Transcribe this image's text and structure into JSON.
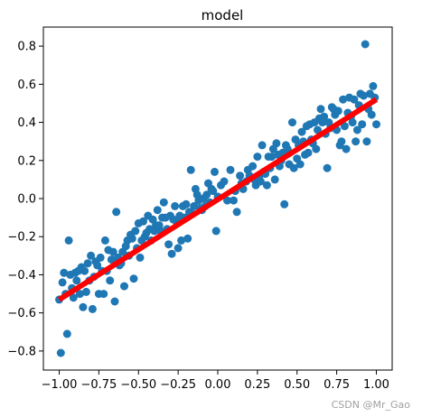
{
  "chart_data": {
    "type": "scatter",
    "title": "model",
    "xlabel": "",
    "ylabel": "",
    "xlim": [
      -1.1,
      1.1
    ],
    "ylim": [
      -0.9,
      0.9
    ],
    "x_ticks": [
      -1.0,
      -0.75,
      -0.5,
      -0.25,
      0.0,
      0.25,
      0.5,
      0.75,
      1.0
    ],
    "x_tick_labels": [
      "−1.00",
      "−0.75",
      "−0.50",
      "−0.25",
      "0.00",
      "0.25",
      "0.50",
      "0.75",
      "1.00"
    ],
    "y_ticks": [
      -0.8,
      -0.6,
      -0.4,
      -0.2,
      0.0,
      0.2,
      0.4,
      0.6,
      0.8
    ],
    "y_tick_labels": [
      "−0.8",
      "−0.6",
      "−0.4",
      "−0.2",
      "0.0",
      "0.2",
      "0.4",
      "0.6",
      "0.8"
    ],
    "grid": false,
    "series": [
      {
        "type": "scatter",
        "color": "#1f77b4",
        "points": [
          [
            -1.0,
            -0.53
          ],
          [
            -0.99,
            -0.81
          ],
          [
            -0.98,
            -0.44
          ],
          [
            -0.97,
            -0.39
          ],
          [
            -0.96,
            -0.5
          ],
          [
            -0.95,
            -0.71
          ],
          [
            -0.94,
            -0.22
          ],
          [
            -0.93,
            -0.4
          ],
          [
            -0.92,
            -0.47
          ],
          [
            -0.91,
            -0.52
          ],
          [
            -0.9,
            -0.39
          ],
          [
            -0.89,
            -0.43
          ],
          [
            -0.88,
            -0.38
          ],
          [
            -0.87,
            -0.5
          ],
          [
            -0.86,
            -0.36
          ],
          [
            -0.85,
            -0.57
          ],
          [
            -0.84,
            -0.38
          ],
          [
            -0.83,
            -0.49
          ],
          [
            -0.82,
            -0.34
          ],
          [
            -0.81,
            -0.43
          ],
          [
            -0.8,
            -0.3
          ],
          [
            -0.79,
            -0.58
          ],
          [
            -0.78,
            -0.41
          ],
          [
            -0.77,
            -0.33
          ],
          [
            -0.76,
            -0.35
          ],
          [
            -0.75,
            -0.5
          ],
          [
            -0.74,
            -0.31
          ],
          [
            -0.73,
            -0.38
          ],
          [
            -0.72,
            -0.5
          ],
          [
            -0.71,
            -0.22
          ],
          [
            -0.7,
            -0.38
          ],
          [
            -0.69,
            -0.27
          ],
          [
            -0.68,
            -0.43
          ],
          [
            -0.67,
            -0.32
          ],
          [
            -0.66,
            -0.28
          ],
          [
            -0.65,
            -0.54
          ],
          [
            -0.64,
            -0.07
          ],
          [
            -0.63,
            -0.31
          ],
          [
            -0.62,
            -0.35
          ],
          [
            -0.61,
            -0.34
          ],
          [
            -0.6,
            -0.28
          ],
          [
            -0.59,
            -0.46
          ],
          [
            -0.58,
            -0.25
          ],
          [
            -0.57,
            -0.22
          ],
          [
            -0.56,
            -0.3
          ],
          [
            -0.55,
            -0.19
          ],
          [
            -0.54,
            -0.21
          ],
          [
            -0.53,
            -0.42
          ],
          [
            -0.52,
            -0.17
          ],
          [
            -0.51,
            -0.26
          ],
          [
            -0.5,
            -0.13
          ],
          [
            -0.49,
            -0.31
          ],
          [
            -0.48,
            -0.22
          ],
          [
            -0.47,
            -0.12
          ],
          [
            -0.46,
            -0.2
          ],
          [
            -0.45,
            -0.18
          ],
          [
            -0.44,
            -0.09
          ],
          [
            -0.43,
            -0.16
          ],
          [
            -0.42,
            -0.22
          ],
          [
            -0.41,
            -0.11
          ],
          [
            -0.4,
            -0.17
          ],
          [
            -0.39,
            -0.14
          ],
          [
            -0.38,
            -0.06
          ],
          [
            -0.37,
            -0.14
          ],
          [
            -0.36,
            -0.17
          ],
          [
            -0.35,
            -0.1
          ],
          [
            -0.34,
            -0.02
          ],
          [
            -0.33,
            -0.1
          ],
          [
            -0.32,
            -0.16
          ],
          [
            -0.31,
            -0.24
          ],
          [
            -0.3,
            -0.09
          ],
          [
            -0.29,
            -0.29
          ],
          [
            -0.28,
            -0.11
          ],
          [
            -0.27,
            -0.04
          ],
          [
            -0.26,
            -0.12
          ],
          [
            -0.25,
            -0.26
          ],
          [
            -0.24,
            -0.09
          ],
          [
            -0.23,
            -0.22
          ],
          [
            -0.22,
            -0.04
          ],
          [
            -0.21,
            -0.1
          ],
          [
            -0.2,
            -0.03
          ],
          [
            -0.19,
            -0.21
          ],
          [
            -0.18,
            -0.07
          ],
          [
            -0.17,
            0.15
          ],
          [
            -0.16,
            -0.08
          ],
          [
            -0.15,
            -0.04
          ],
          [
            -0.14,
            0.05
          ],
          [
            -0.13,
            0.02
          ],
          [
            -0.12,
            -0.01
          ],
          [
            -0.11,
            -0.05
          ],
          [
            -0.1,
            -0.06
          ],
          [
            -0.09,
            0.0
          ],
          [
            -0.08,
            -0.04
          ],
          [
            -0.07,
            0.02
          ],
          [
            -0.06,
            0.08
          ],
          [
            -0.05,
            -0.02
          ],
          [
            -0.04,
            0.05
          ],
          [
            -0.03,
            0.04
          ],
          [
            -0.02,
            0.14
          ],
          [
            -0.01,
            -0.17
          ],
          [
            0.0,
            0.01
          ],
          [
            0.02,
            0.07
          ],
          [
            0.04,
            0.09
          ],
          [
            0.06,
            -0.01
          ],
          [
            0.08,
            0.15
          ],
          [
            0.1,
            -0.01
          ],
          [
            0.11,
            0.04
          ],
          [
            0.12,
            -0.07
          ],
          [
            0.14,
            0.12
          ],
          [
            0.15,
            0.08
          ],
          [
            0.16,
            0.05
          ],
          [
            0.18,
            0.09
          ],
          [
            0.19,
            0.15
          ],
          [
            0.2,
            0.12
          ],
          [
            0.22,
            0.17
          ],
          [
            0.23,
            0.1
          ],
          [
            0.24,
            0.07
          ],
          [
            0.25,
            0.22
          ],
          [
            0.26,
            0.11
          ],
          [
            0.27,
            0.09
          ],
          [
            0.28,
            0.28
          ],
          [
            0.29,
            0.14
          ],
          [
            0.3,
            0.13
          ],
          [
            0.31,
            0.07
          ],
          [
            0.32,
            0.22
          ],
          [
            0.33,
            0.16
          ],
          [
            0.34,
            0.22
          ],
          [
            0.35,
            0.26
          ],
          [
            0.36,
            0.1
          ],
          [
            0.37,
            0.29
          ],
          [
            0.38,
            0.23
          ],
          [
            0.39,
            0.17
          ],
          [
            0.4,
            0.2
          ],
          [
            0.41,
            0.24
          ],
          [
            0.42,
            -0.03
          ],
          [
            0.43,
            0.28
          ],
          [
            0.44,
            0.26
          ],
          [
            0.45,
            0.18
          ],
          [
            0.47,
            0.4
          ],
          [
            0.48,
            0.16
          ],
          [
            0.49,
            0.31
          ],
          [
            0.5,
            0.21
          ],
          [
            0.51,
            0.28
          ],
          [
            0.52,
            0.18
          ],
          [
            0.53,
            0.35
          ],
          [
            0.54,
            0.3
          ],
          [
            0.55,
            0.23
          ],
          [
            0.56,
            0.38
          ],
          [
            0.57,
            0.24
          ],
          [
            0.58,
            0.39
          ],
          [
            0.59,
            0.31
          ],
          [
            0.6,
            0.29
          ],
          [
            0.61,
            0.4
          ],
          [
            0.62,
            0.26
          ],
          [
            0.63,
            0.36
          ],
          [
            0.64,
            0.42
          ],
          [
            0.65,
            0.47
          ],
          [
            0.66,
            0.4
          ],
          [
            0.67,
            0.43
          ],
          [
            0.68,
            0.34
          ],
          [
            0.69,
            0.16
          ],
          [
            0.7,
            0.4
          ],
          [
            0.71,
            0.37
          ],
          [
            0.72,
            0.48
          ],
          [
            0.73,
            0.47
          ],
          [
            0.74,
            0.44
          ],
          [
            0.75,
            0.36
          ],
          [
            0.76,
            0.46
          ],
          [
            0.77,
            0.28
          ],
          [
            0.78,
            0.3
          ],
          [
            0.79,
            0.52
          ],
          [
            0.8,
            0.38
          ],
          [
            0.81,
            0.26
          ],
          [
            0.82,
            0.45
          ],
          [
            0.83,
            0.53
          ],
          [
            0.84,
            0.43
          ],
          [
            0.85,
            0.4
          ],
          [
            0.86,
            0.52
          ],
          [
            0.87,
            0.3
          ],
          [
            0.88,
            0.36
          ],
          [
            0.89,
            0.49
          ],
          [
            0.9,
            0.55
          ],
          [
            0.91,
            0.39
          ],
          [
            0.92,
            0.54
          ],
          [
            0.93,
            0.81
          ],
          [
            0.94,
            0.3
          ],
          [
            0.95,
            0.47
          ],
          [
            0.96,
            0.55
          ],
          [
            0.97,
            0.44
          ],
          [
            0.98,
            0.59
          ],
          [
            0.99,
            0.53
          ],
          [
            1.0,
            0.39
          ]
        ]
      },
      {
        "type": "line",
        "color": "#ff0000",
        "x": [
          -1.0,
          1.0
        ],
        "y": [
          -0.53,
          0.52
        ]
      }
    ],
    "watermark": "CSDN @Mr_Gao"
  }
}
